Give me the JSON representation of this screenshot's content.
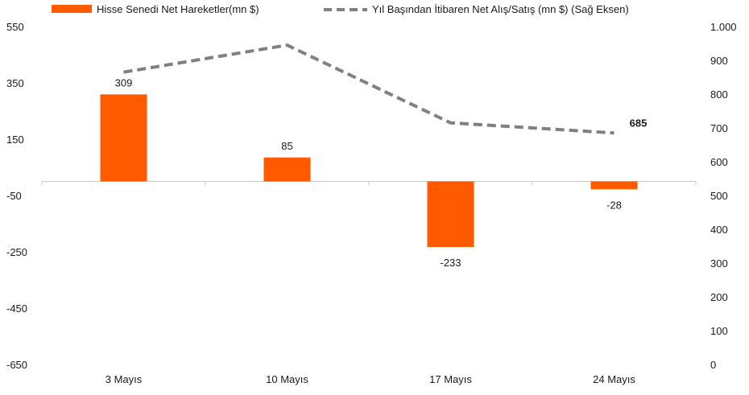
{
  "chart_data": {
    "type": "bar",
    "categories": [
      "3 Mayıs",
      "10 Mayıs",
      "17 Mayıs",
      "24 Mayıs"
    ],
    "series": [
      {
        "name": "Hisse Senedi Net Hareketler(mn $)",
        "type": "bar",
        "axis": "left",
        "color": "#ff5a00",
        "values": [
          309,
          85,
          -233,
          -28
        ],
        "labels": [
          "309",
          "85",
          "-233",
          "-28"
        ]
      },
      {
        "name": "Yıl Başından İtibaren Net Alış/Satış (mn $) (Sağ Eksen)",
        "type": "line",
        "axis": "right",
        "style": "dashed",
        "color": "#808080",
        "values": [
          865,
          945,
          715,
          685
        ],
        "labels": [
          "",
          "",
          "",
          "685"
        ]
      }
    ],
    "left_axis": {
      "ylim": [
        -650,
        550
      ],
      "ticks": [
        550,
        350,
        150,
        -50,
        -250,
        -450,
        -650
      ],
      "tick_labels": [
        "550",
        "350",
        "150",
        "-50",
        "-250",
        "-450",
        "-650"
      ]
    },
    "right_axis": {
      "ylim": [
        0,
        1000
      ],
      "ticks": [
        1000,
        900,
        800,
        700,
        600,
        500,
        400,
        300,
        200,
        100,
        0
      ],
      "tick_labels": [
        "1.000",
        "900",
        "800",
        "700",
        "600",
        "500",
        "400",
        "300",
        "200",
        "100",
        "0"
      ]
    },
    "legend_position": "top",
    "grid": false
  }
}
